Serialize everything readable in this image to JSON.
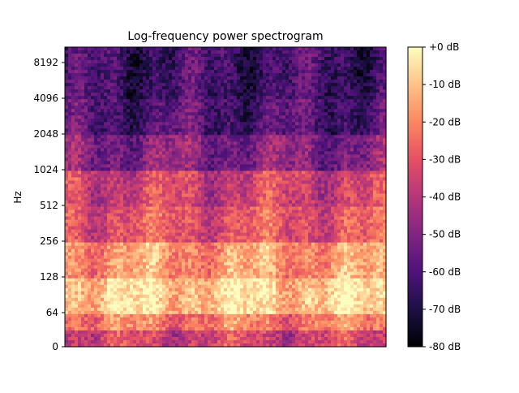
{
  "chart_data": {
    "type": "heatmap",
    "title": "Log-frequency power spectrogram",
    "xlabel": "",
    "ylabel": "Hz",
    "y_scale": "log2-like",
    "y_ticks": [
      "0",
      "64",
      "128",
      "256",
      "512",
      "1024",
      "2048",
      "4096",
      "8192"
    ],
    "y_range_hz": [
      0,
      11025
    ],
    "x_ticks": [],
    "colormap": "magma",
    "colorbar": {
      "ticks": [
        "+0 dB",
        "-10 dB",
        "-20 dB",
        "-30 dB",
        "-40 dB",
        "-50 dB",
        "-60 dB",
        "-70 dB",
        "-80 dB"
      ],
      "range_db": [
        -80,
        0
      ]
    },
    "bands": [
      {
        "hz_low": 0,
        "hz_high": 32,
        "mean_db": -35
      },
      {
        "hz_low": 32,
        "hz_high": 64,
        "mean_db": -22
      },
      {
        "hz_low": 64,
        "hz_high": 128,
        "mean_db": -8
      },
      {
        "hz_low": 128,
        "hz_high": 256,
        "mean_db": -17
      },
      {
        "hz_low": 256,
        "hz_high": 512,
        "mean_db": -30
      },
      {
        "hz_low": 512,
        "hz_high": 1024,
        "mean_db": -35
      },
      {
        "hz_low": 1024,
        "hz_high": 2048,
        "mean_db": -50
      },
      {
        "hz_low": 2048,
        "hz_high": 4096,
        "mean_db": -60
      },
      {
        "hz_low": 4096,
        "hz_high": 11025,
        "mean_db": -63
      }
    ],
    "grid": false,
    "legend": "none"
  }
}
